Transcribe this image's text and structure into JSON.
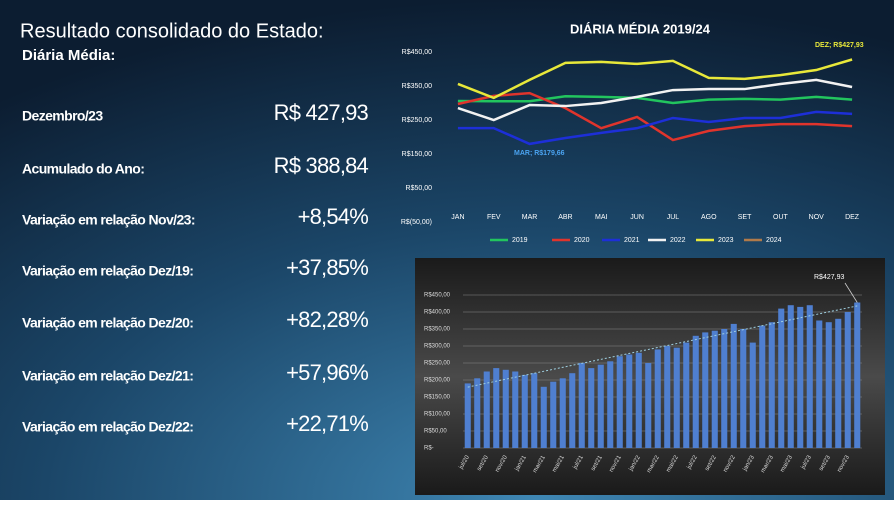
{
  "header": {
    "title": "Resultado consolidado do Estado:",
    "subtitle": "Diária Média:"
  },
  "kpis": {
    "rows": [
      {
        "label": "Dezembro/23",
        "value": "R$ 427,93"
      },
      {
        "label": "Acumulado do Ano:",
        "value": "R$ 388,84"
      },
      {
        "label": "Variação em relação Nov/23:",
        "value": "+8,54%"
      },
      {
        "label": "Variação em relação Dez/19:",
        "value": "+37,85%"
      },
      {
        "label": "Variação em relação Dez/20:",
        "value": "+82,28%"
      },
      {
        "label": "Variação em relação Dez/21:",
        "value": "+57,96%"
      },
      {
        "label": "Variação em relação Dez/22:",
        "value": "+22,71%"
      }
    ]
  },
  "chart_data": [
    {
      "type": "line",
      "title": "DIÁRIA MÉDIA 2019/24",
      "categories": [
        "JAN",
        "FEV",
        "MAR",
        "ABR",
        "MAI",
        "JUN",
        "JUL",
        "AGO",
        "SET",
        "OUT",
        "NOV",
        "DEZ"
      ],
      "series": [
        {
          "name": "2019",
          "color": "#22c55e",
          "values": [
            306,
            305,
            305,
            320,
            318,
            315,
            300,
            310,
            312,
            310,
            318,
            310
          ]
        },
        {
          "name": "2020",
          "color": "#e0342c",
          "values": [
            297,
            321,
            329,
            285,
            226,
            259,
            191,
            218,
            232,
            238,
            238,
            232
          ]
        },
        {
          "name": "2021",
          "color": "#1d2fd8",
          "values": [
            226,
            226,
            179.66,
            197,
            212,
            226,
            256,
            244,
            256,
            256,
            274,
            268
          ]
        },
        {
          "name": "2022",
          "color": "#f2f2f2",
          "values": [
            285,
            250,
            294,
            291,
            300,
            318,
            338,
            341,
            341,
            356,
            368,
            347
          ]
        },
        {
          "name": "2023",
          "color": "#e8e83a",
          "values": [
            356,
            315,
            368,
            418,
            421,
            415,
            424,
            374,
            371,
            382,
            397,
            427.93
          ]
        },
        {
          "name": "2024",
          "color": "#b07a4a",
          "values": [
            null,
            null,
            null,
            null,
            null,
            null,
            null,
            null,
            null,
            null,
            null,
            null
          ]
        }
      ],
      "ylim": [
        -50,
        450
      ],
      "yticks": [
        {
          "value": 450,
          "label": "R$450,00"
        },
        {
          "value": 350,
          "label": "R$350,00"
        },
        {
          "value": 250,
          "label": "R$250,00"
        },
        {
          "value": 150,
          "label": "R$150,00"
        },
        {
          "value": 50,
          "label": "R$50,00"
        },
        {
          "value": -50,
          "label": "R$(50,00)"
        }
      ],
      "annotations": [
        {
          "text": "DEZ; R$427,93",
          "color": "#e8e83a"
        },
        {
          "text": "MAR; R$179,66",
          "color": "#4aa3f0"
        }
      ]
    },
    {
      "type": "bar",
      "color": "#4f7fd0",
      "categories": [
        "jul/20",
        null,
        "set/20",
        null,
        "nov/20",
        null,
        "jan/21",
        null,
        "mar/21",
        null,
        "mai/21",
        null,
        "jul/21",
        null,
        "set/21",
        null,
        "nov/21",
        null,
        "jan/22",
        null,
        "mar/22",
        null,
        "mai/22",
        null,
        "jul/22",
        null,
        "set/22",
        null,
        "nov/22",
        null,
        "jan/23",
        null,
        "mar/23",
        null,
        "mai/23",
        null,
        "jul/23",
        null,
        "set/23",
        null,
        "nov/23",
        null
      ],
      "values": [
        190,
        205,
        225,
        235,
        230,
        225,
        215,
        220,
        180,
        195,
        205,
        220,
        250,
        235,
        245,
        255,
        270,
        275,
        280,
        250,
        290,
        300,
        295,
        310,
        330,
        340,
        345,
        350,
        365,
        350,
        310,
        360,
        370,
        410,
        420,
        415,
        420,
        375,
        370,
        380,
        400,
        427.93
      ],
      "ylim": [
        0,
        450
      ],
      "yticks": [
        {
          "value": 450,
          "label": "R$450,00"
        },
        {
          "value": 400,
          "label": "R$400,00"
        },
        {
          "value": 350,
          "label": "R$350,00"
        },
        {
          "value": 300,
          "label": "R$300,00"
        },
        {
          "value": 250,
          "label": "R$250,00"
        },
        {
          "value": 200,
          "label": "R$200,00"
        },
        {
          "value": 150,
          "label": "R$150,00"
        },
        {
          "value": 100,
          "label": "R$100,00"
        },
        {
          "value": 50,
          "label": "R$50,00"
        },
        {
          "value": 0,
          "label": "R$-"
        }
      ],
      "annotations": [
        {
          "text": "R$427,93"
        }
      ]
    }
  ]
}
